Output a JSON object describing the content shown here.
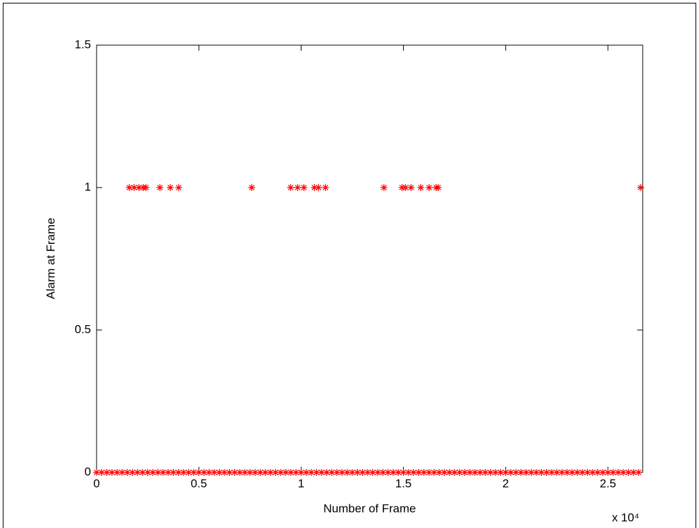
{
  "chart_data": {
    "type": "scatter",
    "x_label": "Number of Frame",
    "y_label": "Alarm at Frame",
    "x_exponent": "x 10⁴",
    "xlim": [
      0,
      26700
    ],
    "ylim": [
      0,
      1.5
    ],
    "xticks": [
      0,
      {
        "value": 5000,
        "label": "0.5"
      },
      {
        "value": 10000,
        "label": "1"
      },
      {
        "value": 15000,
        "label": "1.5"
      },
      {
        "value": 20000,
        "label": "2"
      },
      {
        "value": 25000,
        "label": "2.5"
      }
    ],
    "yticks": [
      0,
      0.5,
      1,
      1.5
    ],
    "marker": "asterisk",
    "series": [
      {
        "color": "#ff0000",
        "x": [
          1600,
          1837,
          2075,
          2279,
          2415,
          3095,
          3605,
          4014,
          7585,
          9490,
          9830,
          10136,
          10646,
          10850,
          11190,
          14048,
          14932,
          15102,
          15374,
          15850,
          16259,
          16599,
          16701,
          26599
        ],
        "values": [
          1,
          1,
          1,
          1,
          1,
          1,
          1,
          1,
          1,
          1,
          1,
          1,
          1,
          1,
          1,
          1,
          1,
          1,
          1,
          1,
          1,
          1,
          1,
          1
        ]
      },
      {
        "color": "#ff0000",
        "x": [
          0,
          250,
          500,
          750,
          1000,
          1250,
          1500,
          1750,
          2000,
          2250,
          2500,
          2750,
          3000,
          3250,
          3500,
          3750,
          4000,
          4250,
          4500,
          4750,
          5000,
          5250,
          5500,
          5750,
          6000,
          6250,
          6500,
          6750,
          7000,
          7250,
          7500,
          7750,
          8000,
          8250,
          8500,
          8750,
          9000,
          9250,
          9500,
          9750,
          10000,
          10250,
          10500,
          10750,
          11000,
          11250,
          11500,
          11750,
          12000,
          12250,
          12500,
          12750,
          13000,
          13250,
          13500,
          13750,
          14000,
          14250,
          14500,
          14750,
          15000,
          15250,
          15500,
          15750,
          16000,
          16250,
          16500,
          16750,
          17000,
          17250,
          17500,
          17750,
          18000,
          18250,
          18500,
          18750,
          19000,
          19250,
          19500,
          19750,
          20000,
          20250,
          20500,
          20750,
          21000,
          21250,
          21500,
          21750,
          22000,
          22250,
          22500,
          22750,
          23000,
          23250,
          23500,
          23750,
          24000,
          24250,
          24500,
          24750,
          25000,
          25250,
          25500,
          25750,
          26000,
          26250,
          26500
        ],
        "values": [
          0,
          0,
          0,
          0,
          0,
          0,
          0,
          0,
          0,
          0,
          0,
          0,
          0,
          0,
          0,
          0,
          0,
          0,
          0,
          0,
          0,
          0,
          0,
          0,
          0,
          0,
          0,
          0,
          0,
          0,
          0,
          0,
          0,
          0,
          0,
          0,
          0,
          0,
          0,
          0,
          0,
          0,
          0,
          0,
          0,
          0,
          0,
          0,
          0,
          0,
          0,
          0,
          0,
          0,
          0,
          0,
          0,
          0,
          0,
          0,
          0,
          0,
          0,
          0,
          0,
          0,
          0,
          0,
          0,
          0,
          0,
          0,
          0,
          0,
          0,
          0,
          0,
          0,
          0,
          0,
          0,
          0,
          0,
          0,
          0,
          0,
          0,
          0,
          0,
          0,
          0,
          0,
          0,
          0,
          0,
          0,
          0,
          0,
          0,
          0,
          0,
          0,
          0,
          0,
          0,
          0,
          0
        ]
      }
    ]
  }
}
